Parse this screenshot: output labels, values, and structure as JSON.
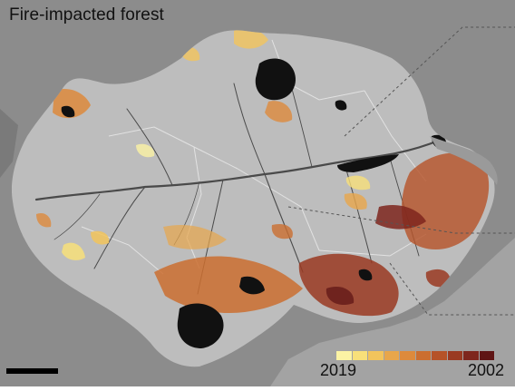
{
  "map": {
    "title": "Fire-impacted forest",
    "background_color": "#8c8c8c",
    "region_fill": "#bdbdbd",
    "river_color": "#4a4a4a",
    "deforested_color": "#111111",
    "legend": {
      "start_label": "2019",
      "end_label": "2002",
      "colors": [
        "#fbf3a4",
        "#f8e07a",
        "#f2c45c",
        "#e8a64b",
        "#dd8a3c",
        "#cb6e30",
        "#b65328",
        "#9a3a22",
        "#7e261d",
        "#5f1515"
      ]
    },
    "scale_bar": "scale-bar",
    "callout_leaders": 3
  }
}
